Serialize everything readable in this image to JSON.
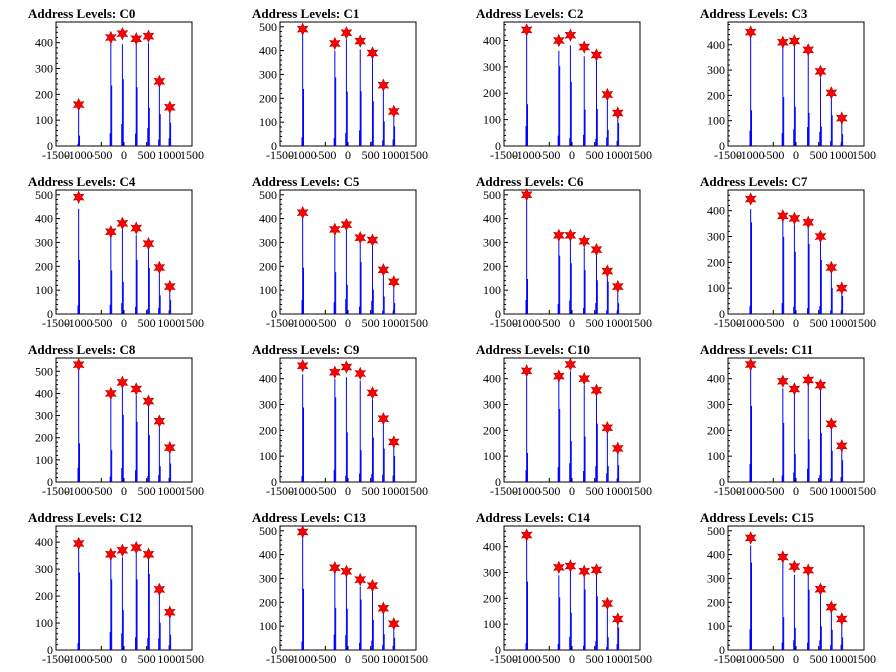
{
  "colors": {
    "bars": "#0000ff",
    "markers": "#ff0000",
    "marker_stroke": "#b00000",
    "axes": "#000000"
  },
  "chart_data": [
    {
      "type": "bar",
      "title": "Address Levels: C0",
      "xlim": [
        -1500,
        1500
      ],
      "ylim": [
        0,
        480
      ],
      "yticks": [
        0,
        100,
        200,
        300,
        400
      ],
      "xticks": [
        -1500,
        -1000,
        -500,
        0,
        500,
        1000,
        1500
      ],
      "peaks": {
        "x": [
          -1000,
          -290,
          -35,
          270,
          540,
          780,
          1010
        ],
        "y": [
          160,
          420,
          435,
          415,
          425,
          250,
          150
        ]
      }
    },
    {
      "type": "bar",
      "title": "Address Levels: C1",
      "xlim": [
        -1500,
        1500
      ],
      "ylim": [
        0,
        520
      ],
      "yticks": [
        0,
        100,
        200,
        300,
        400,
        500
      ],
      "xticks": [
        -1500,
        -1000,
        -500,
        0,
        500,
        1000,
        1500
      ],
      "peaks": {
        "x": [
          -1000,
          -290,
          -35,
          270,
          540,
          780,
          1010
        ],
        "y": [
          490,
          430,
          475,
          440,
          390,
          255,
          145
        ]
      }
    },
    {
      "type": "bar",
      "title": "Address Levels: C2",
      "xlim": [
        -1500,
        1500
      ],
      "ylim": [
        0,
        470
      ],
      "yticks": [
        0,
        100,
        200,
        300,
        400
      ],
      "xticks": [
        -1500,
        -1000,
        -500,
        0,
        500,
        1000,
        1500
      ],
      "peaks": {
        "x": [
          -1000,
          -290,
          -35,
          270,
          540,
          780,
          1010
        ],
        "y": [
          440,
          400,
          420,
          375,
          345,
          195,
          125
        ]
      }
    },
    {
      "type": "bar",
      "title": "Address Levels: C3",
      "xlim": [
        -1500,
        1500
      ],
      "ylim": [
        0,
        490
      ],
      "yticks": [
        0,
        100,
        200,
        300,
        400
      ],
      "xticks": [
        -1500,
        -1000,
        -500,
        0,
        500,
        1000,
        1500
      ],
      "peaks": {
        "x": [
          -1000,
          -290,
          -35,
          270,
          540,
          780,
          1010
        ],
        "y": [
          450,
          410,
          415,
          380,
          295,
          210,
          110
        ]
      }
    },
    {
      "type": "bar",
      "title": "Address Levels: C4",
      "xlim": [
        -1500,
        1500
      ],
      "ylim": [
        0,
        520
      ],
      "yticks": [
        0,
        100,
        200,
        300,
        400,
        500
      ],
      "xticks": [
        -1500,
        -1000,
        -500,
        0,
        500,
        1000,
        1500
      ],
      "peaks": {
        "x": [
          -1000,
          -290,
          -35,
          270,
          540,
          780,
          1010
        ],
        "y": [
          490,
          345,
          380,
          360,
          295,
          195,
          115
        ]
      }
    },
    {
      "type": "bar",
      "title": "Address Levels: C5",
      "xlim": [
        -1500,
        1500
      ],
      "ylim": [
        0,
        520
      ],
      "yticks": [
        0,
        100,
        200,
        300,
        400,
        500
      ],
      "xticks": [
        -1500,
        -1000,
        -500,
        0,
        500,
        1000,
        1500
      ],
      "peaks": {
        "x": [
          -1000,
          -290,
          -35,
          270,
          540,
          780,
          1010
        ],
        "y": [
          425,
          355,
          375,
          320,
          310,
          185,
          135
        ]
      }
    },
    {
      "type": "bar",
      "title": "Address Levels: C6",
      "xlim": [
        -1500,
        1500
      ],
      "ylim": [
        0,
        520
      ],
      "yticks": [
        0,
        100,
        200,
        300,
        400,
        500
      ],
      "xticks": [
        -1500,
        -1000,
        -500,
        0,
        500,
        1000,
        1500
      ],
      "peaks": {
        "x": [
          -1000,
          -290,
          -35,
          270,
          540,
          780,
          1010
        ],
        "y": [
          500,
          330,
          330,
          305,
          270,
          180,
          115
        ]
      }
    },
    {
      "type": "bar",
      "title": "Address Levels: C7",
      "xlim": [
        -1500,
        1500
      ],
      "ylim": [
        0,
        480
      ],
      "yticks": [
        0,
        100,
        200,
        300,
        400
      ],
      "xticks": [
        -1500,
        -1000,
        -500,
        0,
        500,
        1000,
        1500
      ],
      "peaks": {
        "x": [
          -1000,
          -290,
          -35,
          270,
          540,
          780,
          1010
        ],
        "y": [
          445,
          380,
          370,
          355,
          300,
          180,
          100
        ]
      }
    },
    {
      "type": "bar",
      "title": "Address Levels: C8",
      "xlim": [
        -1500,
        1500
      ],
      "ylim": [
        0,
        560
      ],
      "yticks": [
        0,
        100,
        200,
        300,
        400,
        500
      ],
      "xticks": [
        -1500,
        -1000,
        -500,
        0,
        500,
        1000,
        1500
      ],
      "peaks": {
        "x": [
          -1000,
          -290,
          -35,
          270,
          540,
          780,
          1010
        ],
        "y": [
          530,
          400,
          450,
          420,
          365,
          275,
          155
        ]
      }
    },
    {
      "type": "bar",
      "title": "Address Levels: C9",
      "xlim": [
        -1500,
        1500
      ],
      "ylim": [
        0,
        480
      ],
      "yticks": [
        0,
        100,
        200,
        300,
        400
      ],
      "xticks": [
        -1500,
        -1000,
        -500,
        0,
        500,
        1000,
        1500
      ],
      "peaks": {
        "x": [
          -1000,
          -290,
          -35,
          270,
          540,
          780,
          1010
        ],
        "y": [
          450,
          425,
          445,
          420,
          345,
          245,
          155
        ]
      }
    },
    {
      "type": "bar",
      "title": "Address Levels: C10",
      "xlim": [
        -1500,
        1500
      ],
      "ylim": [
        0,
        480
      ],
      "yticks": [
        0,
        100,
        200,
        300,
        400
      ],
      "xticks": [
        -1500,
        -1000,
        -500,
        0,
        500,
        1000,
        1500
      ],
      "peaks": {
        "x": [
          -1000,
          -290,
          -35,
          270,
          540,
          780,
          1010
        ],
        "y": [
          430,
          410,
          455,
          400,
          355,
          210,
          130
        ]
      }
    },
    {
      "type": "bar",
      "title": "Address Levels: C11",
      "xlim": [
        -1500,
        1500
      ],
      "ylim": [
        0,
        480
      ],
      "yticks": [
        0,
        100,
        200,
        300,
        400
      ],
      "xticks": [
        -1500,
        -1000,
        -500,
        0,
        500,
        1000,
        1500
      ],
      "peaks": {
        "x": [
          -1000,
          -290,
          -35,
          270,
          540,
          780,
          1010
        ],
        "y": [
          455,
          390,
          360,
          395,
          375,
          225,
          140
        ]
      }
    },
    {
      "type": "bar",
      "title": "Address Levels: C12",
      "xlim": [
        -1500,
        1500
      ],
      "ylim": [
        0,
        460
      ],
      "yticks": [
        0,
        100,
        200,
        300,
        400
      ],
      "xticks": [
        -1500,
        -1000,
        -500,
        0,
        500,
        1000,
        1500
      ],
      "peaks": {
        "x": [
          -1000,
          -290,
          -35,
          270,
          540,
          780,
          1010
        ],
        "y": [
          395,
          355,
          370,
          380,
          355,
          225,
          140
        ]
      }
    },
    {
      "type": "bar",
      "title": "Address Levels: C13",
      "xlim": [
        -1500,
        1500
      ],
      "ylim": [
        0,
        520
      ],
      "yticks": [
        0,
        100,
        200,
        300,
        400,
        500
      ],
      "xticks": [
        -1500,
        -1000,
        -500,
        0,
        500,
        1000,
        1500
      ],
      "peaks": {
        "x": [
          -1000,
          -290,
          -35,
          270,
          540,
          780,
          1010
        ],
        "y": [
          495,
          345,
          330,
          295,
          270,
          175,
          110
        ]
      }
    },
    {
      "type": "bar",
      "title": "Address Levels: C14",
      "xlim": [
        -1500,
        1500
      ],
      "ylim": [
        0,
        480
      ],
      "yticks": [
        0,
        100,
        200,
        300,
        400
      ],
      "xticks": [
        -1500,
        -1000,
        -500,
        0,
        500,
        1000,
        1500
      ],
      "peaks": {
        "x": [
          -1000,
          -290,
          -35,
          270,
          540,
          780,
          1010
        ],
        "y": [
          445,
          320,
          325,
          305,
          310,
          180,
          120
        ]
      }
    },
    {
      "type": "bar",
      "title": "Address Levels: C15",
      "xlim": [
        -1500,
        1500
      ],
      "ylim": [
        0,
        520
      ],
      "yticks": [
        0,
        100,
        200,
        300,
        400,
        500
      ],
      "xticks": [
        -1500,
        -1000,
        -500,
        0,
        500,
        1000,
        1500
      ],
      "peaks": {
        "x": [
          -1000,
          -290,
          -35,
          270,
          540,
          780,
          1010
        ],
        "y": [
          470,
          390,
          350,
          335,
          255,
          180,
          130
        ]
      }
    }
  ]
}
